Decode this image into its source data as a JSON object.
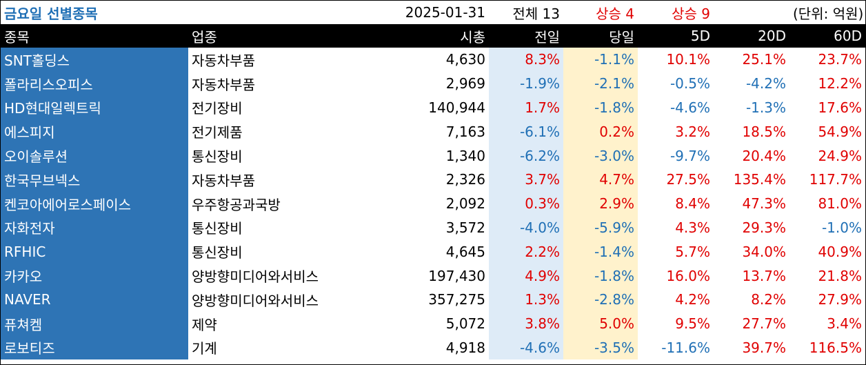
{
  "title": "금요일 선별종목",
  "date": "2025-01-31",
  "total": "전체 13",
  "up_today": "상승 4",
  "up_5d": "상승 9",
  "unit": "(단위: 억원)",
  "columns": [
    "종목",
    "업종",
    "시총",
    "전일",
    "당일",
    "5D",
    "20D",
    "60D"
  ],
  "rows": [
    {
      "name": "SNT홀딩스",
      "sector": "자동차부품",
      "cap": "4,630",
      "prev": "8.3%",
      "today": "-1.1%",
      "d5": "10.1%",
      "d20": "25.1%",
      "d60": "23.7%"
    },
    {
      "name": "폴라리스오피스",
      "sector": "자동차부품",
      "cap": "2,969",
      "prev": "-1.9%",
      "today": "-2.1%",
      "d5": "-0.5%",
      "d20": "-4.2%",
      "d60": "12.2%"
    },
    {
      "name": "HD현대일렉트릭",
      "sector": "전기장비",
      "cap": "140,944",
      "prev": "1.7%",
      "today": "-1.8%",
      "d5": "-4.6%",
      "d20": "-1.3%",
      "d60": "17.6%"
    },
    {
      "name": "에스피지",
      "sector": "전기제품",
      "cap": "7,163",
      "prev": "-6.1%",
      "today": "0.2%",
      "d5": "3.2%",
      "d20": "18.5%",
      "d60": "54.9%"
    },
    {
      "name": "오이솔루션",
      "sector": "통신장비",
      "cap": "1,340",
      "prev": "-6.2%",
      "today": "-3.0%",
      "d5": "-9.7%",
      "d20": "20.4%",
      "d60": "24.9%"
    },
    {
      "name": "한국무브넥스",
      "sector": "자동차부품",
      "cap": "2,326",
      "prev": "3.7%",
      "today": "4.7%",
      "d5": "27.5%",
      "d20": "135.4%",
      "d60": "117.7%"
    },
    {
      "name": "켄코아에어로스페이스",
      "sector": "우주항공과국방",
      "cap": "2,092",
      "prev": "0.3%",
      "today": "2.9%",
      "d5": "8.4%",
      "d20": "47.3%",
      "d60": "81.0%"
    },
    {
      "name": "자화전자",
      "sector": "통신장비",
      "cap": "3,572",
      "prev": "-4.0%",
      "today": "-5.9%",
      "d5": "4.3%",
      "d20": "29.3%",
      "d60": "-1.0%"
    },
    {
      "name": "RFHIC",
      "sector": "통신장비",
      "cap": "4,645",
      "prev": "2.2%",
      "today": "-1.4%",
      "d5": "5.7%",
      "d20": "34.0%",
      "d60": "40.9%"
    },
    {
      "name": "카카오",
      "sector": "양방향미디어와서비스",
      "cap": "197,430",
      "prev": "4.9%",
      "today": "-1.8%",
      "d5": "16.0%",
      "d20": "13.7%",
      "d60": "21.8%"
    },
    {
      "name": "NAVER",
      "sector": "양방향미디어와서비스",
      "cap": "357,275",
      "prev": "1.3%",
      "today": "-2.8%",
      "d5": "4.2%",
      "d20": "8.2%",
      "d60": "27.9%"
    },
    {
      "name": "퓨쳐켐",
      "sector": "제약",
      "cap": "5,072",
      "prev": "3.8%",
      "today": "5.0%",
      "d5": "9.5%",
      "d20": "27.7%",
      "d60": "3.4%"
    },
    {
      "name": "로보티즈",
      "sector": "기계",
      "cap": "4,918",
      "prev": "-4.6%",
      "today": "-3.5%",
      "d5": "-11.6%",
      "d20": "39.7%",
      "d60": "116.5%"
    }
  ],
  "colors": {
    "positive": "#e00000",
    "negative": "#1f6fb5",
    "name_bg": "#2e74b5",
    "prev_bg": "#deebf7",
    "today_bg": "#fff2cc"
  }
}
